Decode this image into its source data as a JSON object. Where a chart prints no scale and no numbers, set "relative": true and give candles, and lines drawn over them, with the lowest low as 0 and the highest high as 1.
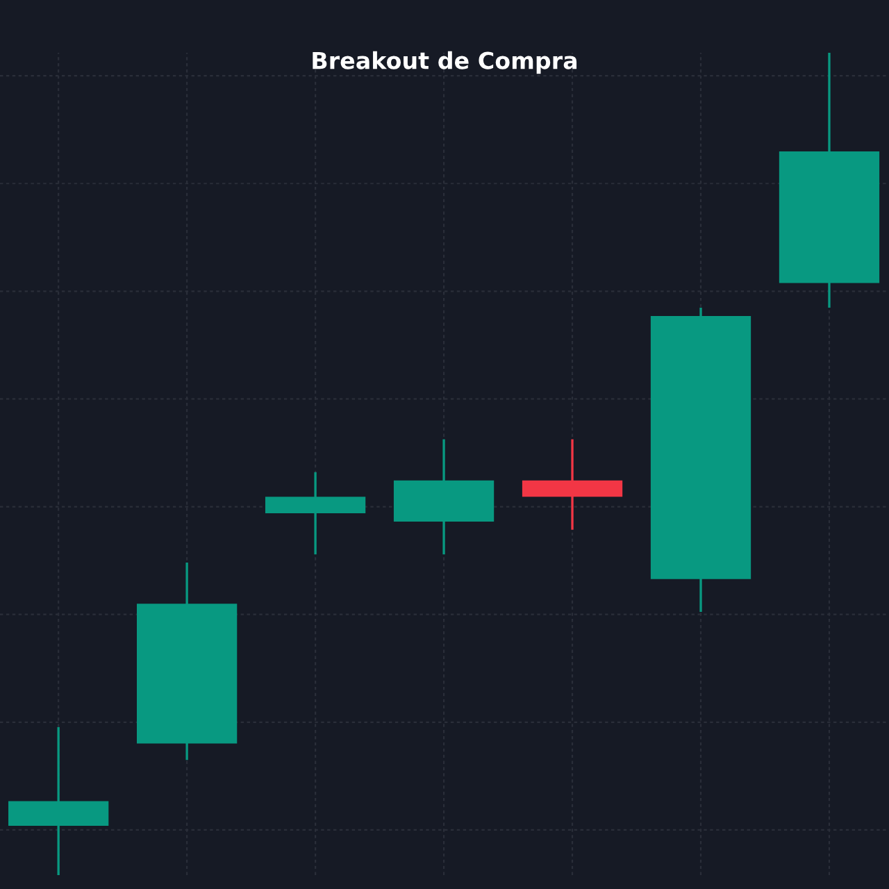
{
  "chart_data": {
    "type": "candlestick",
    "title": "Breakout de Compra",
    "relative": true,
    "categories": [
      null,
      null,
      null,
      null,
      null,
      null,
      null
    ],
    "ohlc": [
      [
        0.06,
        0.18,
        0,
        0.09
      ],
      [
        0.16,
        0.38,
        0.14,
        0.33
      ],
      [
        0.44,
        0.49,
        0.39,
        0.46
      ],
      [
        0.43,
        0.53,
        0.39,
        0.48
      ],
      [
        0.48,
        0.53,
        0.42,
        0.46
      ],
      [
        0.36,
        0.69,
        0.32,
        0.68
      ],
      [
        0.72,
        1,
        0.69,
        0.88
      ]
    ],
    "colors": [
      "#089981",
      "#089981",
      "#089981",
      "#089981",
      "#f23645",
      "#089981",
      "#089981"
    ],
    "grid": true
  }
}
